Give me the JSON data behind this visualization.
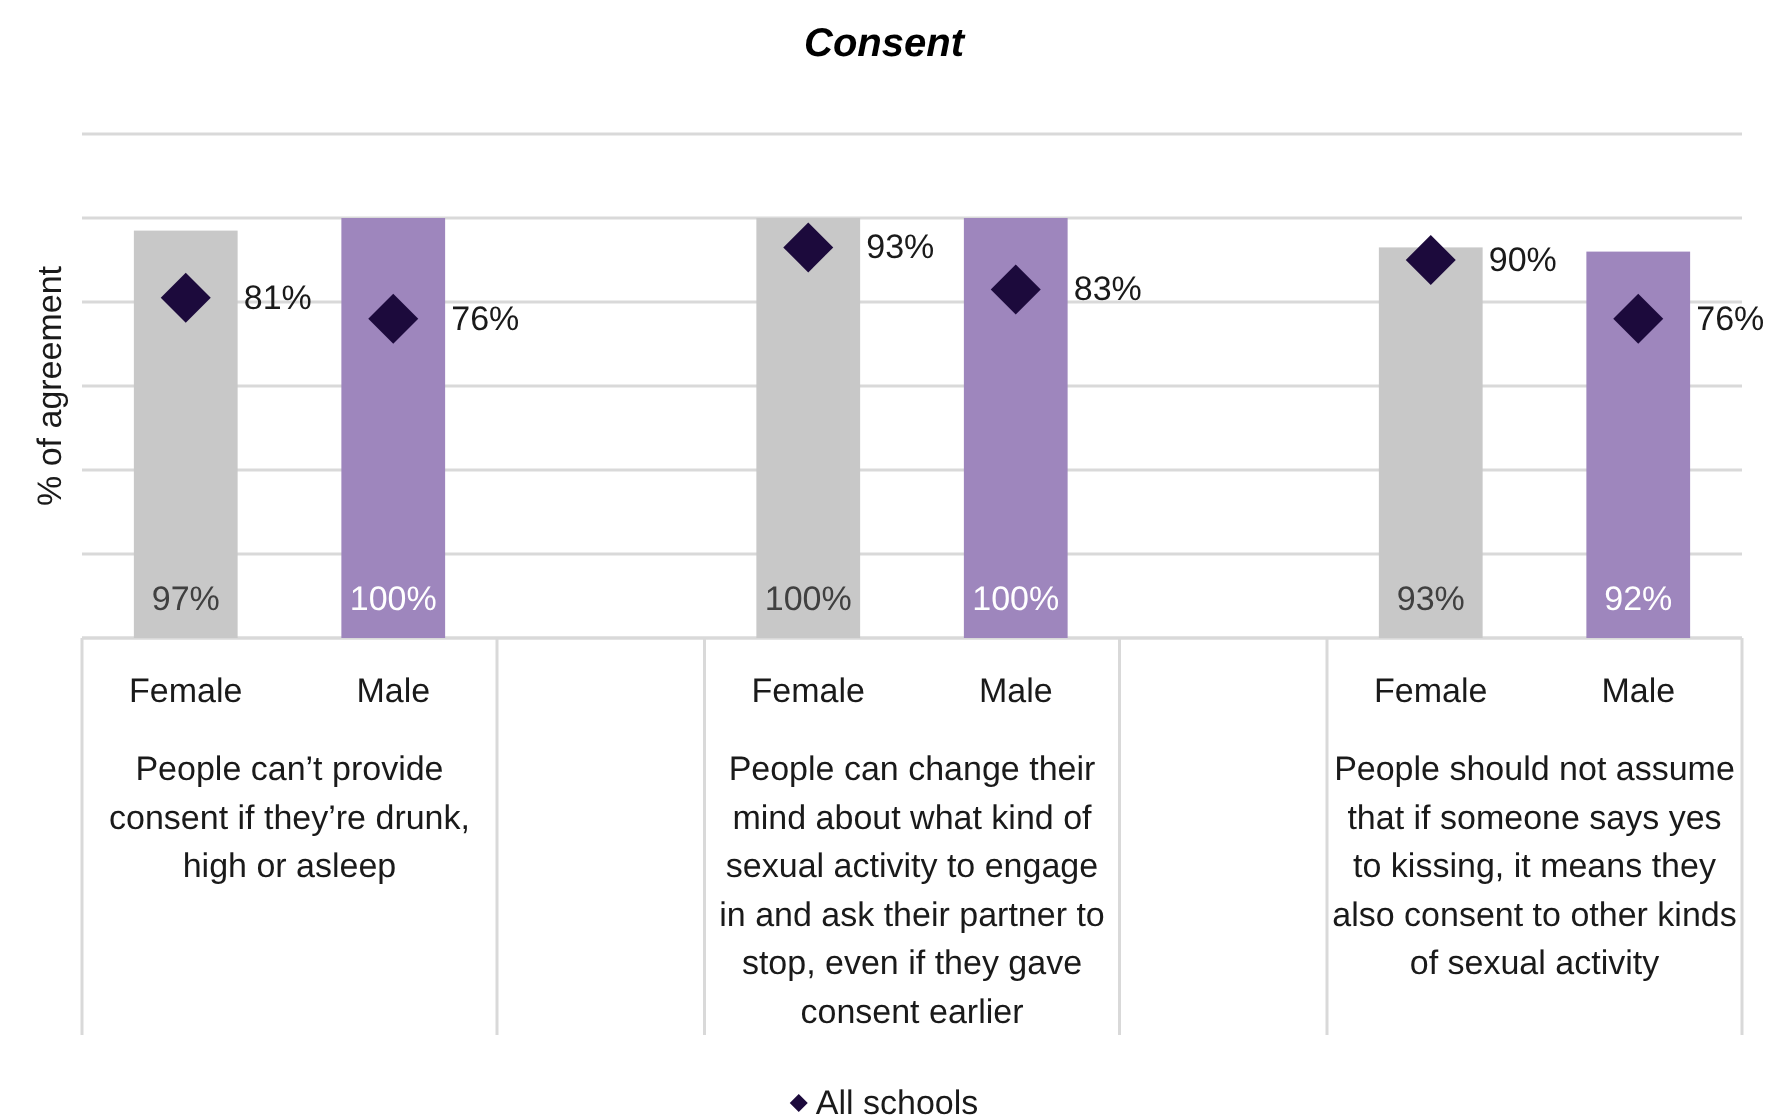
{
  "chart_data": {
    "type": "bar",
    "title": "Consent",
    "ylabel": "% of agreement",
    "categories": [
      "Female",
      "Male",
      null,
      "Female",
      "Male",
      null,
      "Female",
      "Male"
    ],
    "annotations": [
      "People can’t provide consent if they’re drunk, high or asleep",
      "People can change their mind about what kind of sexual activity to engage in and ask their partner to stop, even if they gave consent earlier",
      "People should not assume that if someone says yes to kissing, it means they also consent to other kinds of sexual activity"
    ],
    "series": [
      {
        "colors": [
          "#c8c8c8",
          "#9e86bd",
          null,
          "#c8c8c8",
          "#9e86bd",
          null,
          "#c8c8c8",
          "#9e86bd"
        ],
        "values": [
          97,
          100,
          null,
          100,
          100,
          null,
          93,
          92
        ],
        "value_labels": [
          "97%",
          "100%",
          null,
          "100%",
          "100%",
          null,
          "93%",
          "92%"
        ]
      },
      {
        "type": "scatter",
        "name": "All schools",
        "color": "#1c0a3c",
        "marker": "diamond",
        "values": [
          81,
          76,
          null,
          93,
          83,
          null,
          90,
          76
        ],
        "value_labels": [
          "81%",
          "76%",
          null,
          "93%",
          "83%",
          null,
          "90%",
          "76%"
        ]
      }
    ],
    "ylim": [
      0,
      120
    ],
    "yticks": [
      {
        "value": 0,
        "label": null
      },
      {
        "value": 20,
        "label": null
      },
      {
        "value": 40,
        "label": null
      },
      {
        "value": 60,
        "label": null
      },
      {
        "value": 80,
        "label": null
      },
      {
        "value": 100,
        "label": null
      },
      {
        "value": 120,
        "label": null
      }
    ],
    "grid": "y",
    "legend": "bottom",
    "tick_labels": "x"
  }
}
